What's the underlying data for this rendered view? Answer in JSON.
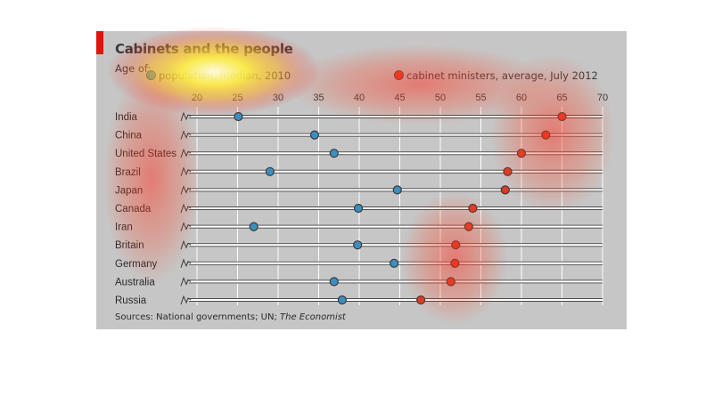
{
  "title": "Cabinets and the people",
  "subtitle": "Age of:",
  "legend": [
    {
      "label": "population, median, 2010",
      "color": "#3a8fc0"
    },
    {
      "label": "cabinet ministers, average, July 2012",
      "color": "#e03a20"
    }
  ],
  "source_prefix": "Sources: National governments; UN; ",
  "source_italic": "The Economist",
  "colors": {
    "accent": "#e3120b",
    "median": "#3a8fc0",
    "cabinet": "#e03a20",
    "panel": "#c6c6c6"
  },
  "chart_data": {
    "type": "dot",
    "title": "Cabinets and the people",
    "subtitle": "Age of:",
    "xlim": [
      20,
      70
    ],
    "xticks": [
      20,
      25,
      30,
      35,
      40,
      45,
      50,
      55,
      60,
      65,
      70
    ],
    "axis_position": "top",
    "grid": true,
    "axis_break": true,
    "categories": [
      "India",
      "China",
      "United States",
      "Brazil",
      "Japan",
      "Canada",
      "Iran",
      "Britain",
      "Germany",
      "Australia",
      "Russia"
    ],
    "series": [
      {
        "name": "population, median, 2010",
        "values": [
          25.1,
          34.5,
          36.9,
          29.0,
          44.7,
          39.9,
          27.0,
          39.8,
          44.3,
          36.9,
          37.9
        ]
      },
      {
        "name": "cabinet ministers, average, July 2012",
        "values": [
          65.0,
          63.0,
          60.0,
          58.3,
          58.0,
          54.0,
          53.5,
          51.9,
          51.8,
          51.3,
          47.6
        ]
      }
    ]
  }
}
